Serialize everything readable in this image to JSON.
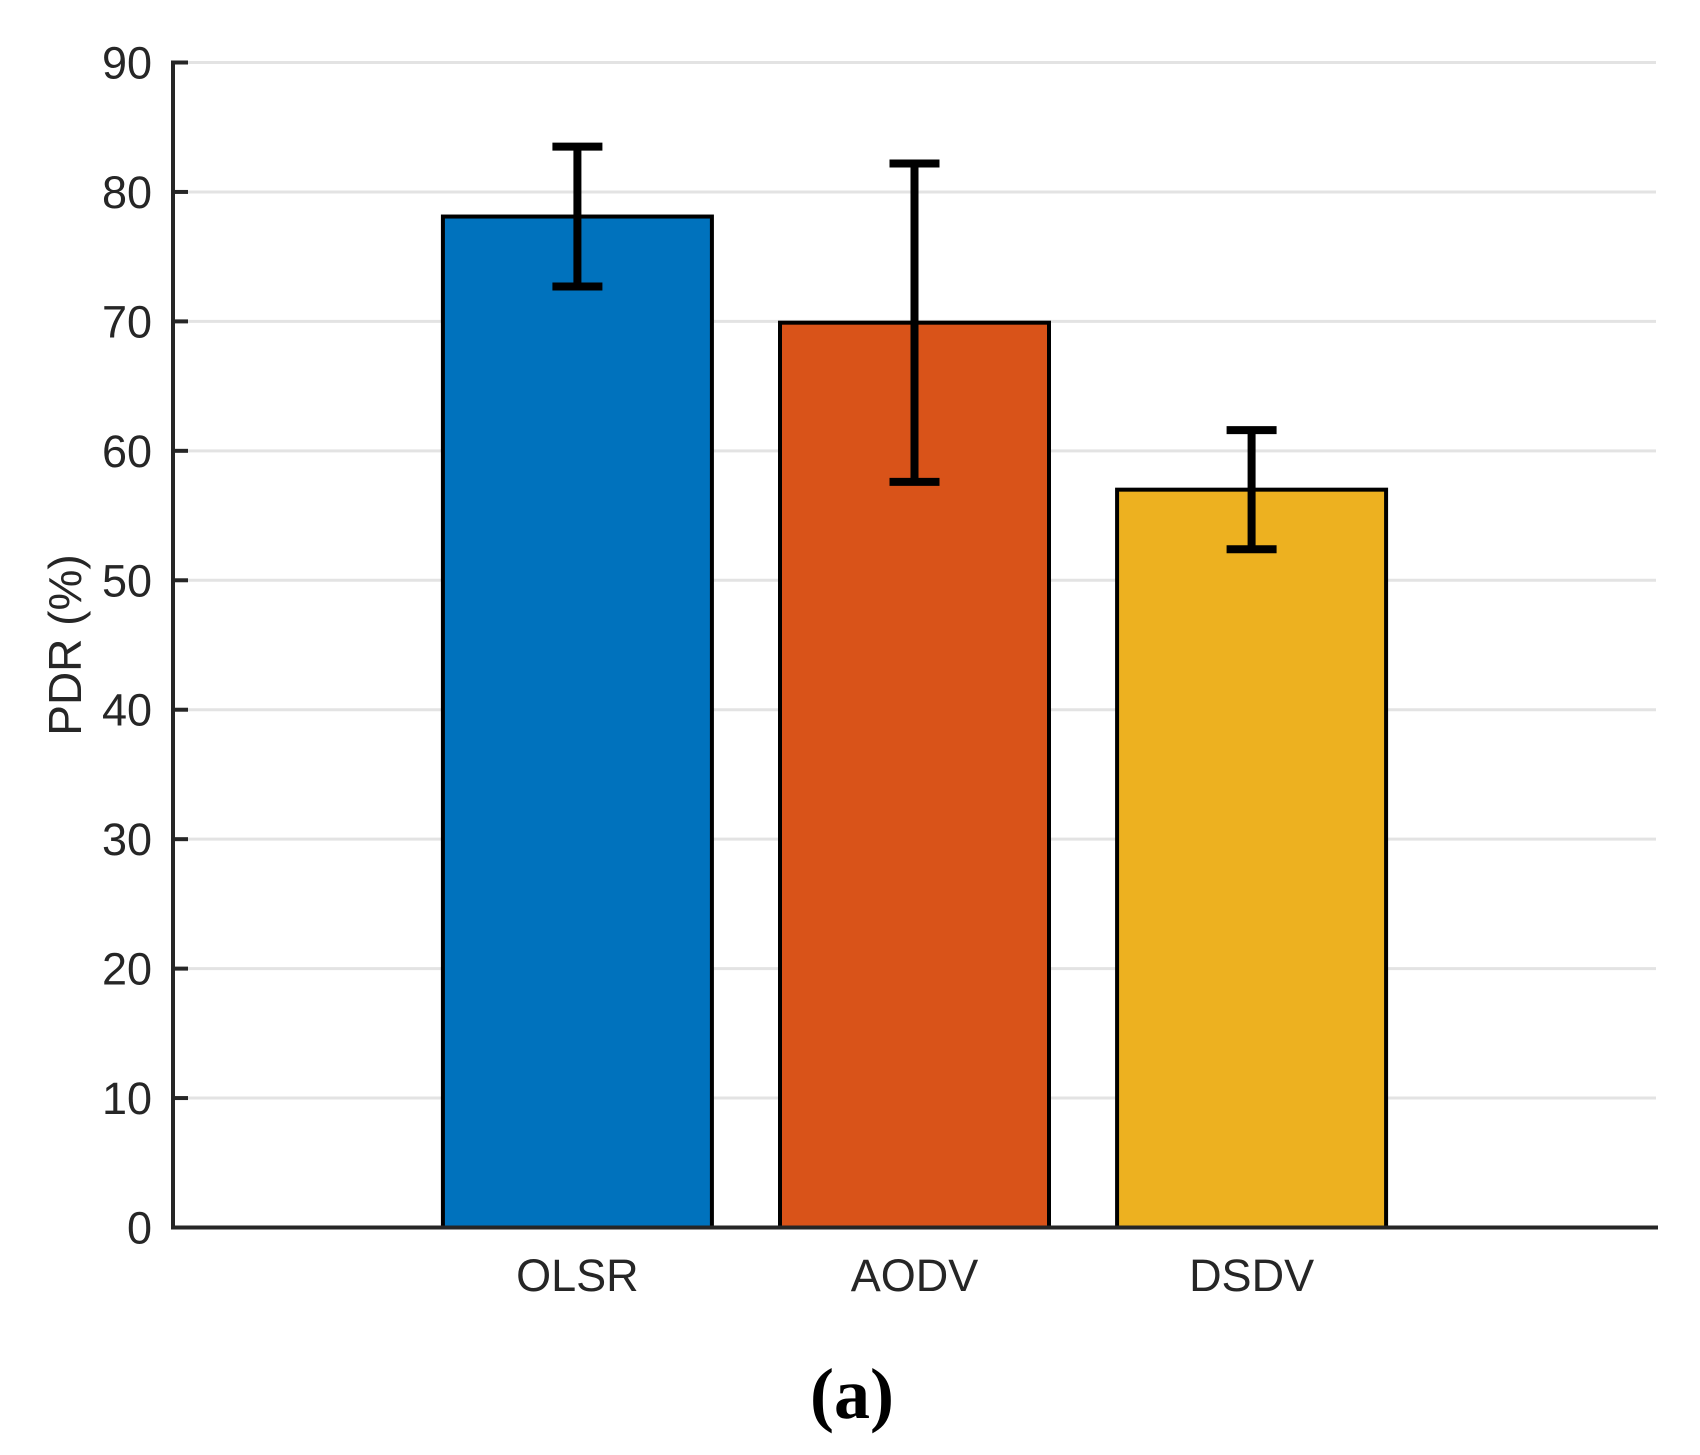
{
  "chart_data": {
    "type": "bar",
    "categories": [
      "OLSR",
      "AODV",
      "DSDV"
    ],
    "values": [
      78.1,
      69.9,
      57.0
    ],
    "error_low": [
      72.7,
      57.6,
      52.4
    ],
    "error_high": [
      83.5,
      82.2,
      61.6
    ],
    "title": "",
    "xlabel": "",
    "ylabel": "PDR (%)",
    "caption": "(a)",
    "ylim": [
      0,
      90
    ],
    "yticks": [
      0,
      10,
      20,
      30,
      40,
      50,
      60,
      70,
      80,
      90
    ],
    "grid": true,
    "legend": "none",
    "bar_colors": [
      "#0072BD",
      "#D95319",
      "#EDB120"
    ],
    "bar_edge_color": "#000000",
    "errorbar_color": "#000000",
    "axis_color": "#262626",
    "grid_color": "#E3E3E3",
    "background_color": "#FFFFFF"
  }
}
